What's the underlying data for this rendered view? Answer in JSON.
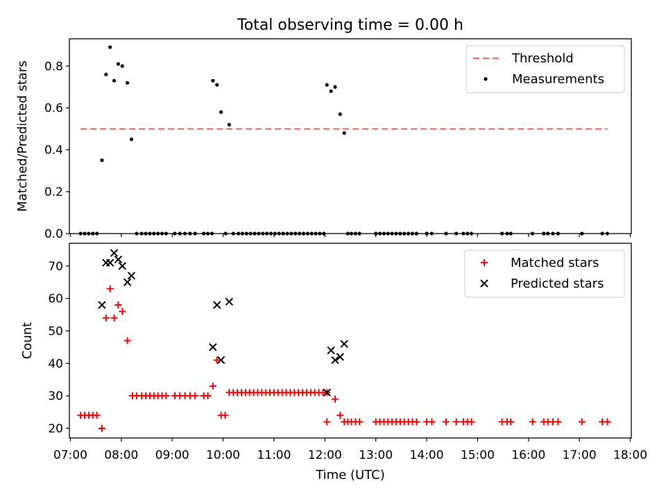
{
  "chart_data": {
    "title": "Total observing time = 0.00 h",
    "xlabel": "Time (UTC)",
    "xticks": [
      "07:00",
      "08:00",
      "09:00",
      "10:00",
      "11:00",
      "12:00",
      "13:00",
      "14:00",
      "15:00",
      "16:00",
      "17:00",
      "18:00"
    ],
    "xlim_hours": [
      6.98,
      18.02
    ],
    "panels": [
      {
        "type": "scatter",
        "ylabel": "Matched/Predicted stars",
        "ylim": [
          0,
          0.93
        ],
        "yticks": [
          0.0,
          0.2,
          0.4,
          0.6,
          0.8
        ],
        "ytick_labels": [
          "0.0",
          "0.2",
          "0.4",
          "0.6",
          "0.8"
        ],
        "legend_position": "top-right",
        "threshold": {
          "name": "Threshold",
          "value": 0.5,
          "x_range": [
            7.2,
            17.55
          ],
          "color": "#ff7070"
        },
        "series": [
          {
            "name": "Measurements",
            "marker": "dot",
            "color": "#000000",
            "points": [
              [
                7.2,
                0
              ],
              [
                7.28,
                0
              ],
              [
                7.36,
                0
              ],
              [
                7.44,
                0
              ],
              [
                7.52,
                0
              ],
              [
                7.62,
                0.35
              ],
              [
                7.7,
                0.76
              ],
              [
                7.78,
                0.89
              ],
              [
                7.86,
                0.73
              ],
              [
                7.94,
                0.81
              ],
              [
                8.02,
                0.8
              ],
              [
                8.12,
                0.72
              ],
              [
                8.2,
                0.45
              ],
              [
                8.3,
                0
              ],
              [
                8.4,
                0
              ],
              [
                8.48,
                0
              ],
              [
                8.56,
                0
              ],
              [
                8.64,
                0
              ],
              [
                8.72,
                0
              ],
              [
                8.8,
                0
              ],
              [
                8.88,
                0
              ],
              [
                9.05,
                0
              ],
              [
                9.15,
                0
              ],
              [
                9.25,
                0
              ],
              [
                9.35,
                0
              ],
              [
                9.45,
                0
              ],
              [
                9.62,
                0
              ],
              [
                9.7,
                0
              ],
              [
                9.78,
                0
              ],
              [
                9.8,
                0.73
              ],
              [
                9.88,
                0.71
              ],
              [
                9.96,
                0.58
              ],
              [
                10.12,
                0.52
              ],
              [
                10.05,
                0
              ],
              [
                10.2,
                0
              ],
              [
                10.3,
                0
              ],
              [
                10.38,
                0
              ],
              [
                10.46,
                0
              ],
              [
                10.54,
                0
              ],
              [
                10.62,
                0
              ],
              [
                10.7,
                0
              ],
              [
                10.78,
                0
              ],
              [
                10.86,
                0
              ],
              [
                10.94,
                0
              ],
              [
                11.02,
                0
              ],
              [
                11.1,
                0
              ],
              [
                11.18,
                0
              ],
              [
                11.26,
                0
              ],
              [
                11.34,
                0
              ],
              [
                11.42,
                0
              ],
              [
                11.5,
                0
              ],
              [
                11.58,
                0
              ],
              [
                11.66,
                0
              ],
              [
                11.74,
                0
              ],
              [
                11.82,
                0
              ],
              [
                11.9,
                0
              ],
              [
                11.98,
                0
              ],
              [
                12.04,
                0.71
              ],
              [
                12.12,
                0.68
              ],
              [
                12.2,
                0.7
              ],
              [
                12.3,
                0.57
              ],
              [
                12.38,
                0.48
              ],
              [
                12.45,
                0
              ],
              [
                12.52,
                0
              ],
              [
                12.6,
                0
              ],
              [
                12.68,
                0
              ],
              [
                13.0,
                0
              ],
              [
                13.08,
                0
              ],
              [
                13.16,
                0
              ],
              [
                13.24,
                0
              ],
              [
                13.32,
                0
              ],
              [
                13.4,
                0
              ],
              [
                13.48,
                0
              ],
              [
                13.56,
                0
              ],
              [
                13.64,
                0
              ],
              [
                13.72,
                0
              ],
              [
                13.8,
                0
              ],
              [
                14.0,
                0
              ],
              [
                14.1,
                0
              ],
              [
                14.38,
                0
              ],
              [
                14.58,
                0
              ],
              [
                14.72,
                0
              ],
              [
                14.8,
                0
              ],
              [
                14.88,
                0
              ],
              [
                15.48,
                0
              ],
              [
                15.58,
                0
              ],
              [
                15.65,
                0
              ],
              [
                16.08,
                0
              ],
              [
                16.3,
                0
              ],
              [
                16.38,
                0
              ],
              [
                16.48,
                0
              ],
              [
                16.58,
                0
              ],
              [
                17.05,
                0
              ],
              [
                17.45,
                0
              ],
              [
                17.55,
                0
              ]
            ]
          }
        ]
      },
      {
        "type": "scatter",
        "ylabel": "Count",
        "ylim": [
          17,
          77
        ],
        "yticks": [
          20,
          30,
          40,
          50,
          60,
          70
        ],
        "ytick_labels": [
          "20",
          "30",
          "40",
          "50",
          "60",
          "70"
        ],
        "legend_position": "top-right",
        "series": [
          {
            "name": "Matched stars",
            "marker": "plus",
            "color": "#ff0000",
            "points": [
              [
                7.2,
                24
              ],
              [
                7.28,
                24
              ],
              [
                7.36,
                24
              ],
              [
                7.44,
                24
              ],
              [
                7.52,
                24
              ],
              [
                7.62,
                20
              ],
              [
                7.7,
                54
              ],
              [
                7.78,
                63
              ],
              [
                7.86,
                54
              ],
              [
                7.94,
                58
              ],
              [
                8.02,
                56
              ],
              [
                8.12,
                47
              ],
              [
                8.22,
                30
              ],
              [
                8.3,
                30
              ],
              [
                8.4,
                30
              ],
              [
                8.48,
                30
              ],
              [
                8.56,
                30
              ],
              [
                8.64,
                30
              ],
              [
                8.72,
                30
              ],
              [
                8.8,
                30
              ],
              [
                8.88,
                30
              ],
              [
                9.05,
                30
              ],
              [
                9.15,
                30
              ],
              [
                9.25,
                30
              ],
              [
                9.35,
                30
              ],
              [
                9.45,
                30
              ],
              [
                9.62,
                30
              ],
              [
                9.7,
                30
              ],
              [
                9.8,
                33
              ],
              [
                9.88,
                41
              ],
              [
                9.96,
                24
              ],
              [
                10.04,
                24
              ],
              [
                10.12,
                31
              ],
              [
                10.2,
                31
              ],
              [
                10.28,
                31
              ],
              [
                10.36,
                31
              ],
              [
                10.44,
                31
              ],
              [
                10.52,
                31
              ],
              [
                10.6,
                31
              ],
              [
                10.68,
                31
              ],
              [
                10.76,
                31
              ],
              [
                10.84,
                31
              ],
              [
                10.92,
                31
              ],
              [
                11.0,
                31
              ],
              [
                11.08,
                31
              ],
              [
                11.16,
                31
              ],
              [
                11.24,
                31
              ],
              [
                11.32,
                31
              ],
              [
                11.4,
                31
              ],
              [
                11.48,
                31
              ],
              [
                11.56,
                31
              ],
              [
                11.64,
                31
              ],
              [
                11.72,
                31
              ],
              [
                11.8,
                31
              ],
              [
                11.88,
                31
              ],
              [
                11.96,
                31
              ],
              [
                12.04,
                31
              ],
              [
                12.04,
                22
              ],
              [
                12.2,
                29
              ],
              [
                12.3,
                24
              ],
              [
                12.38,
                22
              ],
              [
                12.45,
                22
              ],
              [
                12.52,
                22
              ],
              [
                12.6,
                22
              ],
              [
                12.68,
                22
              ],
              [
                13.0,
                22
              ],
              [
                13.08,
                22
              ],
              [
                13.16,
                22
              ],
              [
                13.24,
                22
              ],
              [
                13.32,
                22
              ],
              [
                13.4,
                22
              ],
              [
                13.48,
                22
              ],
              [
                13.56,
                22
              ],
              [
                13.64,
                22
              ],
              [
                13.72,
                22
              ],
              [
                13.8,
                22
              ],
              [
                14.0,
                22
              ],
              [
                14.1,
                22
              ],
              [
                14.38,
                22
              ],
              [
                14.58,
                22
              ],
              [
                14.72,
                22
              ],
              [
                14.8,
                22
              ],
              [
                14.88,
                22
              ],
              [
                15.48,
                22
              ],
              [
                15.58,
                22
              ],
              [
                15.65,
                22
              ],
              [
                16.08,
                22
              ],
              [
                16.3,
                22
              ],
              [
                16.38,
                22
              ],
              [
                16.48,
                22
              ],
              [
                16.58,
                22
              ],
              [
                17.05,
                22
              ],
              [
                17.45,
                22
              ],
              [
                17.55,
                22
              ]
            ]
          },
          {
            "name": "Predicted stars",
            "marker": "x",
            "color": "#000000",
            "points": [
              [
                7.62,
                58
              ],
              [
                7.7,
                71
              ],
              [
                7.78,
                71
              ],
              [
                7.86,
                74
              ],
              [
                7.94,
                72
              ],
              [
                8.02,
                70
              ],
              [
                8.12,
                65
              ],
              [
                8.2,
                67
              ],
              [
                9.8,
                45
              ],
              [
                9.88,
                58
              ],
              [
                9.96,
                41
              ],
              [
                10.12,
                59
              ],
              [
                12.04,
                31
              ],
              [
                12.12,
                44
              ],
              [
                12.2,
                41
              ],
              [
                12.3,
                42
              ],
              [
                12.38,
                46
              ]
            ]
          }
        ]
      }
    ]
  }
}
